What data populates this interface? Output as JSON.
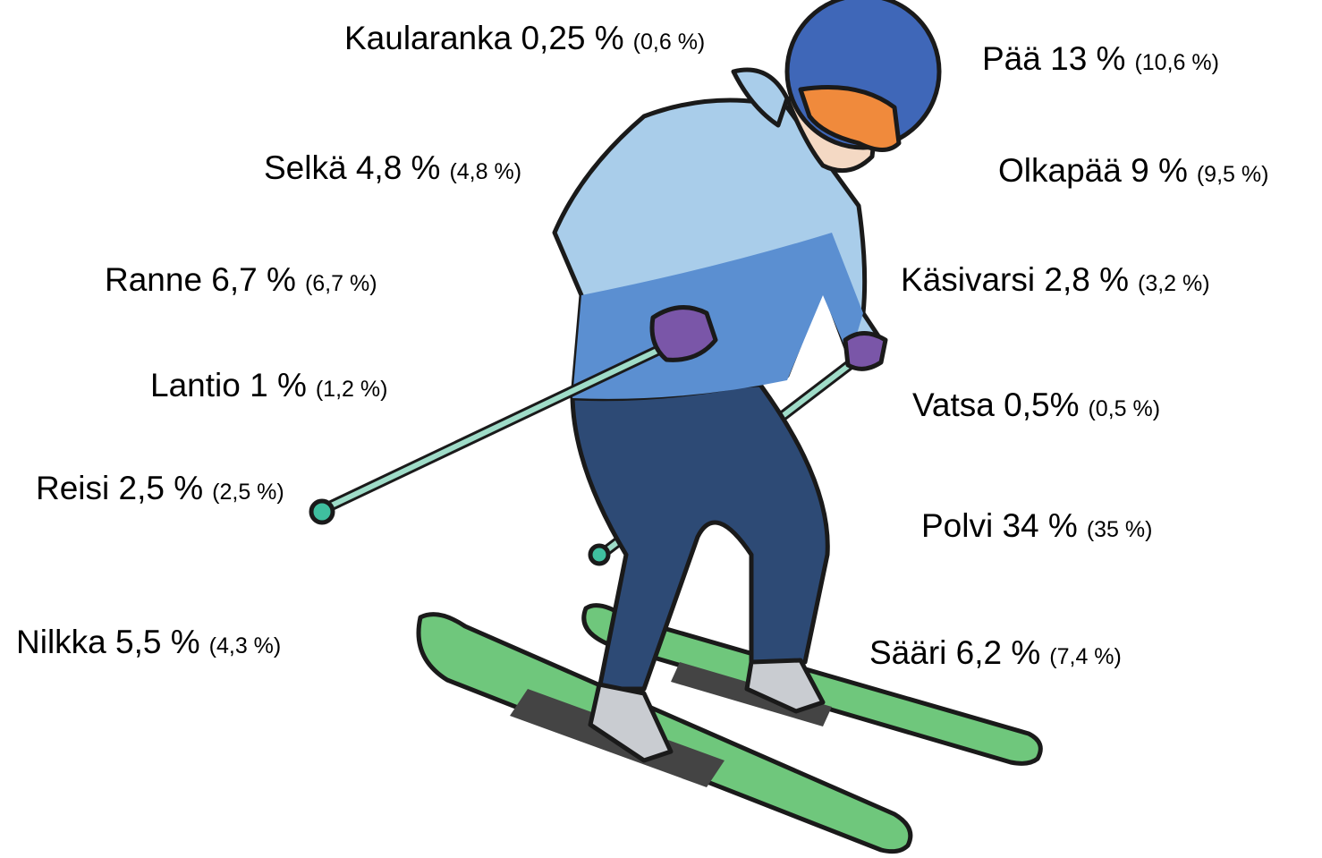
{
  "labels": [
    {
      "text": "Kaularanka 0,25 %",
      "paren": "(0,6 %)"
    },
    {
      "text": "Pää 13 %",
      "paren": "(10,6 %)"
    },
    {
      "text": "Selkä 4,8 %",
      "paren": "(4,8 %)"
    },
    {
      "text": "Olkapää 9 %",
      "paren": "(9,5 %)"
    },
    {
      "text": "Ranne 6,7 %",
      "paren": "(6,7 %)"
    },
    {
      "text": "Käsivarsi 2,8 %",
      "paren": "(3,2 %)"
    },
    {
      "text": "Lantio 1 %",
      "paren": "(1,2 %)"
    },
    {
      "text": "Vatsa 0,5%",
      "paren": "(0,5 %)"
    },
    {
      "text": "Reisi 2,5 %",
      "paren": "(2,5 %)"
    },
    {
      "text": "Polvi 34 %",
      "paren": "(35 %)"
    },
    {
      "text": "Nilkka 5,5 %",
      "paren": "(4,3 %)"
    },
    {
      "text": "Sääri 6,2 %",
      "paren": "(7,4 %)"
    }
  ]
}
